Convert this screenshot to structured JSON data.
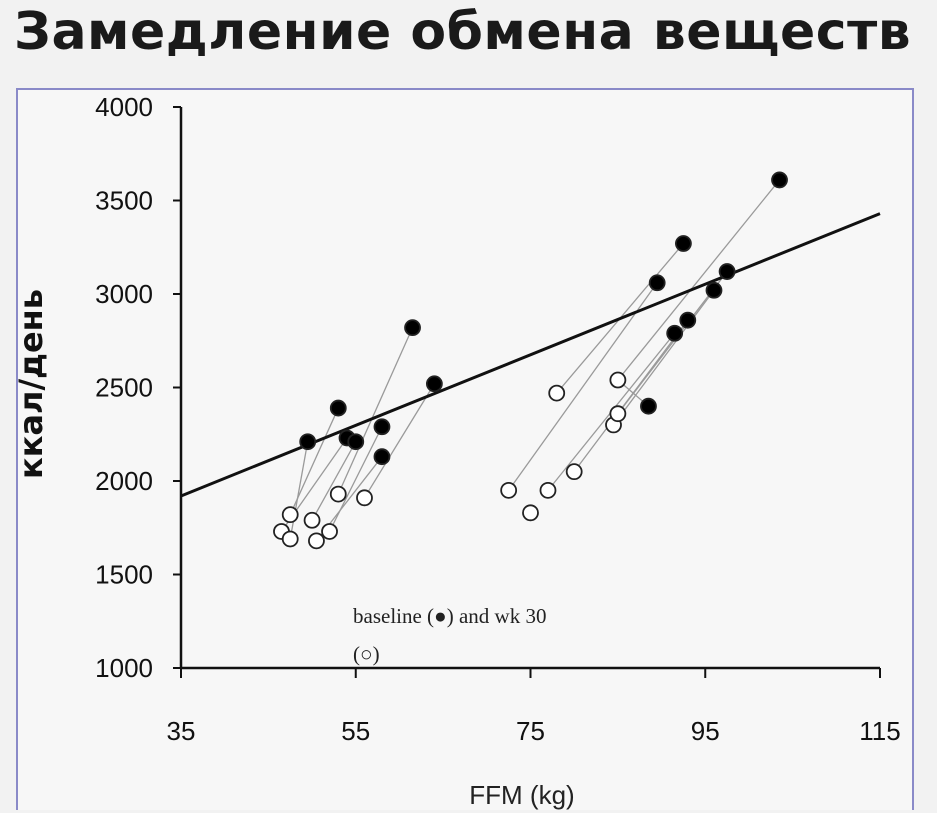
{
  "page": {
    "title": "Замедление обмена веществ"
  },
  "chart_data": {
    "type": "scatter",
    "xlabel": "FFM (kg)",
    "ylabel": "ккал/день",
    "xlim": [
      35,
      115
    ],
    "ylim": [
      1000,
      4000
    ],
    "xticks": [
      35,
      55,
      75,
      95,
      115
    ],
    "yticks": [
      1000,
      1500,
      2000,
      2500,
      3000,
      3500,
      4000
    ],
    "grid": false,
    "regression_line": {
      "x": [
        35,
        115
      ],
      "y": [
        1920,
        3430
      ]
    },
    "annotation": {
      "line1": "baseline (●) and wk 30",
      "line2": "(○)"
    },
    "series": [
      {
        "marker": "filled",
        "points": [
          [
            49.5,
            2210
          ],
          [
            53,
            2390
          ],
          [
            54,
            2230
          ],
          [
            55,
            2210
          ],
          [
            58,
            2290
          ],
          [
            58,
            2130
          ],
          [
            61.5,
            2820
          ],
          [
            64,
            2520
          ],
          [
            89.5,
            3060
          ],
          [
            92.5,
            3270
          ],
          [
            88.5,
            2400
          ],
          [
            91.5,
            2790
          ],
          [
            93,
            2860
          ],
          [
            96,
            3020
          ],
          [
            97.5,
            3120
          ],
          [
            103.5,
            3610
          ]
        ]
      },
      {
        "marker": "open",
        "points": [
          [
            46.5,
            1730
          ],
          [
            47.5,
            1820
          ],
          [
            47.5,
            1690
          ],
          [
            50,
            1790
          ],
          [
            50.5,
            1680
          ],
          [
            52,
            1730
          ],
          [
            53,
            1930
          ],
          [
            56,
            1910
          ],
          [
            72.5,
            1950
          ],
          [
            75,
            1830
          ],
          [
            77,
            1950
          ],
          [
            78,
            2470
          ],
          [
            80,
            2050
          ],
          [
            84.5,
            2300
          ],
          [
            85,
            2360
          ],
          [
            85,
            2540
          ]
        ]
      }
    ],
    "pairs": [
      [
        [
          49.5,
          2210
        ],
        [
          47.5,
          1690
        ]
      ],
      [
        [
          53,
          2390
        ],
        [
          47.5,
          1820
        ]
      ],
      [
        [
          54,
          2230
        ],
        [
          46.5,
          1730
        ]
      ],
      [
        [
          55,
          2210
        ],
        [
          50,
          1790
        ]
      ],
      [
        [
          58,
          2290
        ],
        [
          52,
          1730
        ]
      ],
      [
        [
          58,
          2130
        ],
        [
          50.5,
          1680
        ]
      ],
      [
        [
          61.5,
          2820
        ],
        [
          53,
          1930
        ]
      ],
      [
        [
          64,
          2520
        ],
        [
          56,
          1910
        ]
      ],
      [
        [
          89.5,
          3060
        ],
        [
          72.5,
          1950
        ]
      ],
      [
        [
          92.5,
          3270
        ],
        [
          78,
          2470
        ]
      ],
      [
        [
          91.5,
          2790
        ],
        [
          77,
          1950
        ]
      ],
      [
        [
          93,
          2860
        ],
        [
          80,
          2050
        ]
      ],
      [
        [
          96,
          3020
        ],
        [
          84.5,
          2300
        ]
      ],
      [
        [
          97.5,
          3120
        ],
        [
          85,
          2360
        ]
      ],
      [
        [
          103.5,
          3610
        ],
        [
          85,
          2540
        ]
      ],
      [
        [
          88.5,
          2400
        ],
        [
          85,
          2540
        ]
      ]
    ]
  }
}
